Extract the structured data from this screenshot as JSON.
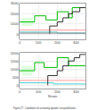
{
  "chart_data": [
    {
      "type": "line",
      "title": "Figure 27 - Conditions for activating dynamic recrystallization",
      "xlim": [
        0,
        350
      ],
      "xticks": [
        0,
        100,
        200,
        300
      ],
      "ylim": [
        -500,
        3000
      ],
      "yticks": [
        0,
        1000,
        2000,
        3000
      ],
      "grid": true,
      "fill_regions": [
        {
          "x1": 10,
          "x2": 70,
          "y1": 800,
          "y2": 1600,
          "color": "#ccffcc"
        }
      ],
      "series": [
        {
          "color": "#00bb00",
          "x": [
            0,
            80,
            80,
            140,
            140,
            200,
            200,
            260,
            260,
            280,
            280,
            350
          ],
          "values": [
            1200,
            1200,
            1800,
            1800,
            1400,
            1400,
            2200,
            2200,
            1600,
            1600,
            2600,
            2600
          ]
        },
        {
          "color": "#ff9999",
          "x": [
            0,
            350
          ],
          "values": [
            400,
            400
          ]
        },
        {
          "color": "#44cccc",
          "x": [
            0,
            200,
            200,
            350
          ],
          "values": [
            200,
            200,
            100,
            100
          ]
        },
        {
          "color": "#333333",
          "x": [
            160,
            160,
            200,
            200,
            230,
            230,
            260,
            260,
            280,
            280,
            320,
            320,
            350
          ],
          "values": [
            0,
            800,
            800,
            1200,
            1200,
            1600,
            1600,
            2000,
            2000,
            2200,
            2200,
            2600,
            2600
          ]
        },
        {
          "color": "#888888",
          "x": [
            0,
            350
          ],
          "values": [
            100,
            100
          ]
        }
      ]
    },
    {
      "type": "line",
      "xlabel": "Strain",
      "xlim": [
        0,
        350
      ],
      "xticks": [
        0,
        100,
        200,
        300
      ],
      "ylim": [
        -200,
        2000
      ],
      "yticks": [
        0,
        500,
        1000,
        1500,
        2000
      ],
      "grid": true,
      "fill_regions": [
        {
          "x1": 10,
          "x2": 70,
          "y1": 600,
          "y2": 1200,
          "color": "#ccffcc"
        }
      ],
      "series": [
        {
          "color": "#00bb00",
          "x": [
            0,
            80,
            80,
            130,
            130,
            200,
            200,
            260,
            260,
            350
          ],
          "values": [
            900,
            900,
            1400,
            1400,
            1100,
            1100,
            1700,
            1700,
            1200,
            1200
          ]
        },
        {
          "color": "#ff9999",
          "x": [
            0,
            350
          ],
          "values": [
            300,
            300
          ]
        },
        {
          "color": "#44cccc",
          "x": [
            0,
            180,
            180,
            350
          ],
          "values": [
            150,
            150,
            80,
            80
          ]
        },
        {
          "color": "#333333",
          "x": [
            150,
            150,
            200,
            200,
            230,
            230,
            260,
            260,
            290,
            290,
            320,
            320,
            350
          ],
          "values": [
            0,
            600,
            600,
            900,
            900,
            1200,
            1200,
            1500,
            1500,
            1700,
            1700,
            1900,
            1900
          ]
        }
      ]
    }
  ]
}
